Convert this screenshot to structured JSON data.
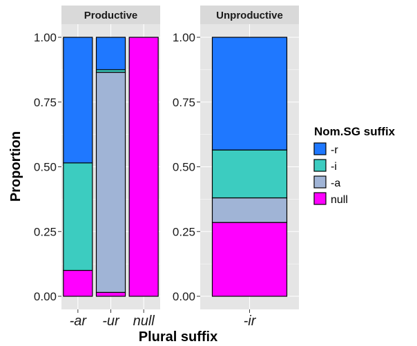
{
  "chart_data": {
    "type": "bar",
    "stacked": true,
    "position": "fill",
    "xlabel": "Plural suffix",
    "ylabel": "Proportion",
    "ylim": [
      0,
      1
    ],
    "yticks": [
      "0.00",
      "0.25",
      "0.50",
      "0.75",
      "1.00"
    ],
    "legend": {
      "title": "Nom.SG suffix",
      "placement": "right",
      "entries": [
        "-r",
        "-i",
        "-a",
        "null"
      ]
    },
    "colors": {
      "-r": "#1f78ff",
      "-i": "#3cccc0",
      "-a": "#a0b4d6",
      "null": "#ff00ff",
      "panel_bg": "#e5e5e5",
      "grid": "#ffffff",
      "strip_bg": "#d9d9d9"
    },
    "grid": true,
    "facets": [
      {
        "label": "Productive",
        "categories": [
          "-ar",
          "-ur",
          "null"
        ],
        "series": [
          {
            "name": "null",
            "values": [
              0.1,
              0.015,
              1.0
            ]
          },
          {
            "name": "-a",
            "values": [
              0.0,
              0.85,
              0.0
            ]
          },
          {
            "name": "-i",
            "values": [
              0.415,
              0.01,
              0.0
            ]
          },
          {
            "name": "-r",
            "values": [
              0.485,
              0.125,
              0.0
            ]
          }
        ]
      },
      {
        "label": "Unproductive",
        "categories": [
          "-ir"
        ],
        "series": [
          {
            "name": "null",
            "values": [
              0.285
            ]
          },
          {
            "name": "-a",
            "values": [
              0.095
            ]
          },
          {
            "name": "-i",
            "values": [
              0.185
            ]
          },
          {
            "name": "-r",
            "values": [
              0.435
            ]
          }
        ]
      }
    ]
  }
}
